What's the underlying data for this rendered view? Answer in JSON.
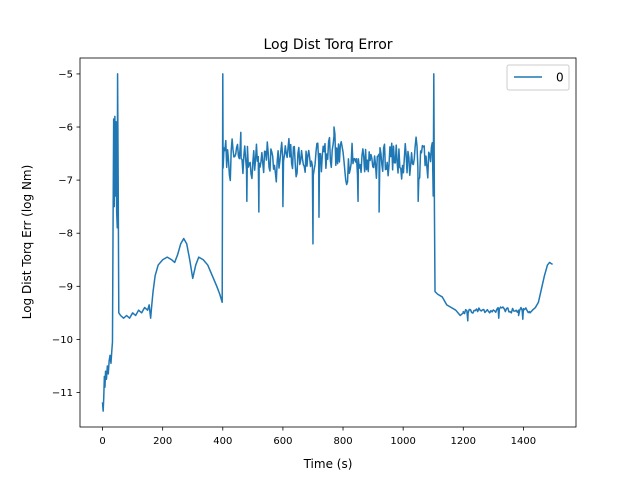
{
  "chart_data": {
    "type": "line",
    "title": "Log Dist Torq Error",
    "xlabel": "Time (s)",
    "ylabel": "Log Dist Torq Err (log Nm)",
    "xlim": [
      -75,
      1575
    ],
    "ylim": [
      -11.65,
      -4.7
    ],
    "xticks": [
      0,
      200,
      400,
      600,
      800,
      1000,
      1200,
      1400
    ],
    "yticks": [
      -11,
      -10,
      -9,
      -8,
      -7,
      -6,
      -5
    ],
    "xtick_labels": [
      "0",
      "200",
      "400",
      "600",
      "800",
      "1000",
      "1200",
      "1400"
    ],
    "ytick_labels": [
      "−11",
      "−10",
      "−9",
      "−8",
      "−7",
      "−6",
      "−5"
    ],
    "grid": false,
    "legend": {
      "position": "top-right",
      "entries": [
        "0"
      ]
    },
    "series": [
      {
        "name": "0",
        "color": "#1f77b4",
        "segments": [
          {
            "kind": "points",
            "points": [
              [
                0,
                -11.2
              ],
              [
                2,
                -11.35
              ],
              [
                4,
                -11.1
              ],
              [
                6,
                -10.7
              ],
              [
                8,
                -10.9
              ],
              [
                10,
                -10.6
              ],
              [
                13,
                -10.75
              ],
              [
                16,
                -10.5
              ],
              [
                19,
                -10.65
              ],
              [
                22,
                -10.4
              ],
              [
                25,
                -10.3
              ],
              [
                28,
                -10.45
              ],
              [
                31,
                -10.2
              ],
              [
                33,
                -10.05
              ],
              [
                35,
                -7.8
              ],
              [
                37,
                -5.85
              ],
              [
                39,
                -7.5
              ],
              [
                41,
                -5.8
              ],
              [
                43,
                -7.3
              ],
              [
                45,
                -5.9
              ],
              [
                47,
                -7.6
              ],
              [
                49,
                -7.9
              ],
              [
                50,
                -5.0
              ],
              [
                52,
                -7.0
              ],
              [
                54,
                -9.5
              ],
              [
                60,
                -9.55
              ],
              [
                70,
                -9.6
              ],
              [
                80,
                -9.55
              ],
              [
                90,
                -9.6
              ],
              [
                100,
                -9.5
              ],
              [
                110,
                -9.55
              ],
              [
                120,
                -9.45
              ],
              [
                130,
                -9.5
              ],
              [
                140,
                -9.4
              ],
              [
                150,
                -9.45
              ],
              [
                155,
                -9.35
              ],
              [
                160,
                -9.6
              ],
              [
                163,
                -9.4
              ],
              [
                168,
                -9.1
              ],
              [
                175,
                -8.8
              ],
              [
                185,
                -8.6
              ],
              [
                200,
                -8.5
              ],
              [
                215,
                -8.45
              ],
              [
                230,
                -8.5
              ],
              [
                240,
                -8.55
              ],
              [
                250,
                -8.4
              ],
              [
                260,
                -8.2
              ],
              [
                270,
                -8.1
              ],
              [
                280,
                -8.2
              ],
              [
                290,
                -8.5
              ],
              [
                300,
                -8.85
              ],
              [
                310,
                -8.6
              ],
              [
                320,
                -8.45
              ],
              [
                335,
                -8.5
              ],
              [
                350,
                -8.6
              ],
              [
                365,
                -8.8
              ],
              [
                380,
                -9.0
              ],
              [
                390,
                -9.15
              ],
              [
                398,
                -9.3
              ],
              [
                400,
                -5.0
              ]
            ]
          },
          {
            "kind": "noise",
            "start": 401,
            "end": 1099,
            "step": 3,
            "mean": -6.6,
            "amp": 0.55,
            "seed": 7,
            "spikes": [
              [
                460,
                -6.1
              ],
              [
                480,
                -7.4
              ],
              [
                520,
                -7.6
              ],
              [
                600,
                -7.5
              ],
              [
                700,
                -8.2
              ],
              [
                720,
                -7.7
              ],
              [
                770,
                -6.0
              ],
              [
                850,
                -7.4
              ],
              [
                920,
                -7.6
              ],
              [
                1050,
                -7.4
              ]
            ]
          },
          {
            "kind": "points",
            "points": [
              [
                1100,
                -7.3
              ],
              [
                1102,
                -5.0
              ],
              [
                1104,
                -7.5
              ],
              [
                1106,
                -9.1
              ],
              [
                1115,
                -9.15
              ],
              [
                1130,
                -9.2
              ],
              [
                1145,
                -9.35
              ],
              [
                1160,
                -9.4
              ],
              [
                1175,
                -9.45
              ],
              [
                1190,
                -9.55
              ],
              [
                1200,
                -9.5
              ]
            ]
          },
          {
            "kind": "noise",
            "start": 1200,
            "end": 1420,
            "step": 4,
            "mean": -9.45,
            "amp": 0.09,
            "seed": 19,
            "spikes": [
              [
                1215,
                -9.65
              ],
              [
                1318,
                -9.6
              ],
              [
                1384,
                -9.55
              ],
              [
                1398,
                -9.62
              ]
            ]
          },
          {
            "kind": "points",
            "points": [
              [
                1422,
                -9.5
              ],
              [
                1430,
                -9.45
              ],
              [
                1440,
                -9.4
              ],
              [
                1450,
                -9.3
              ],
              [
                1460,
                -9.05
              ],
              [
                1470,
                -8.8
              ],
              [
                1480,
                -8.6
              ],
              [
                1487,
                -8.55
              ],
              [
                1492,
                -8.57
              ],
              [
                1495,
                -8.58
              ]
            ]
          }
        ]
      }
    ]
  }
}
